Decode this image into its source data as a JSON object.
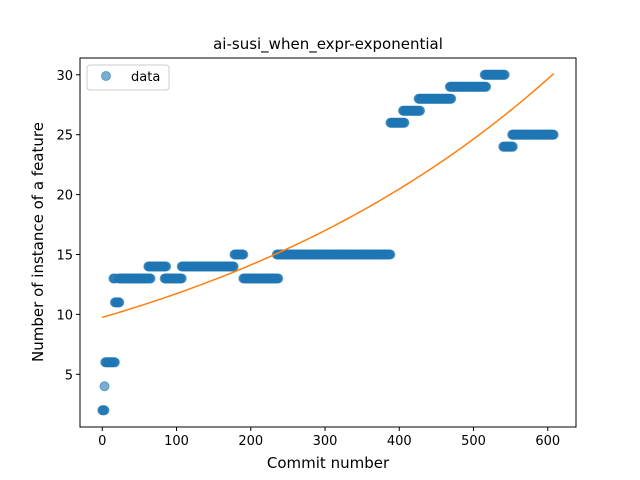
{
  "chart_data": {
    "type": "scatter",
    "title": "ai-susi_when_expr-exponential",
    "xlabel": "Commit number",
    "ylabel": "Number of instance of a feature",
    "xlim": [
      -30,
      638
    ],
    "ylim": [
      0.6,
      31.4
    ],
    "xticks": [
      0,
      100,
      200,
      300,
      400,
      500,
      600
    ],
    "yticks": [
      5,
      10,
      15,
      20,
      25,
      30
    ],
    "grid": false,
    "legend": {
      "position": "top-left",
      "entries": [
        "data"
      ]
    },
    "colors": {
      "data": "#1f77b4",
      "fit": "#ff7f0e"
    },
    "series": [
      {
        "name": "data",
        "kind": "scatter",
        "segments": [
          {
            "x_start": 0,
            "x_end": 3,
            "y": 2
          },
          {
            "x_start": 3,
            "x_end": 3,
            "y": 4
          },
          {
            "x_start": 4,
            "x_end": 17,
            "y": 6
          },
          {
            "x_start": 15,
            "x_end": 17,
            "y": 13
          },
          {
            "x_start": 17,
            "x_end": 23,
            "y": 11
          },
          {
            "x_start": 22,
            "x_end": 65,
            "y": 13
          },
          {
            "x_start": 62,
            "x_end": 86,
            "y": 14
          },
          {
            "x_start": 84,
            "x_end": 107,
            "y": 13
          },
          {
            "x_start": 107,
            "x_end": 177,
            "y": 14
          },
          {
            "x_start": 178,
            "x_end": 190,
            "y": 15
          },
          {
            "x_start": 190,
            "x_end": 237,
            "y": 13
          },
          {
            "x_start": 235,
            "x_end": 388,
            "y": 15
          },
          {
            "x_start": 388,
            "x_end": 407,
            "y": 26
          },
          {
            "x_start": 405,
            "x_end": 428,
            "y": 27
          },
          {
            "x_start": 426,
            "x_end": 470,
            "y": 28
          },
          {
            "x_start": 468,
            "x_end": 517,
            "y": 29
          },
          {
            "x_start": 515,
            "x_end": 542,
            "y": 30
          },
          {
            "x_start": 540,
            "x_end": 553,
            "y": 24
          },
          {
            "x_start": 552,
            "x_end": 608,
            "y": 25
          }
        ]
      },
      {
        "name": "",
        "kind": "line",
        "fit": "exponential",
        "x": [
          0,
          100,
          200,
          300,
          400,
          500,
          608
        ],
        "y": [
          9.75,
          11.6,
          14.55,
          17.3,
          21.1,
          25.5,
          30.1
        ]
      }
    ]
  }
}
